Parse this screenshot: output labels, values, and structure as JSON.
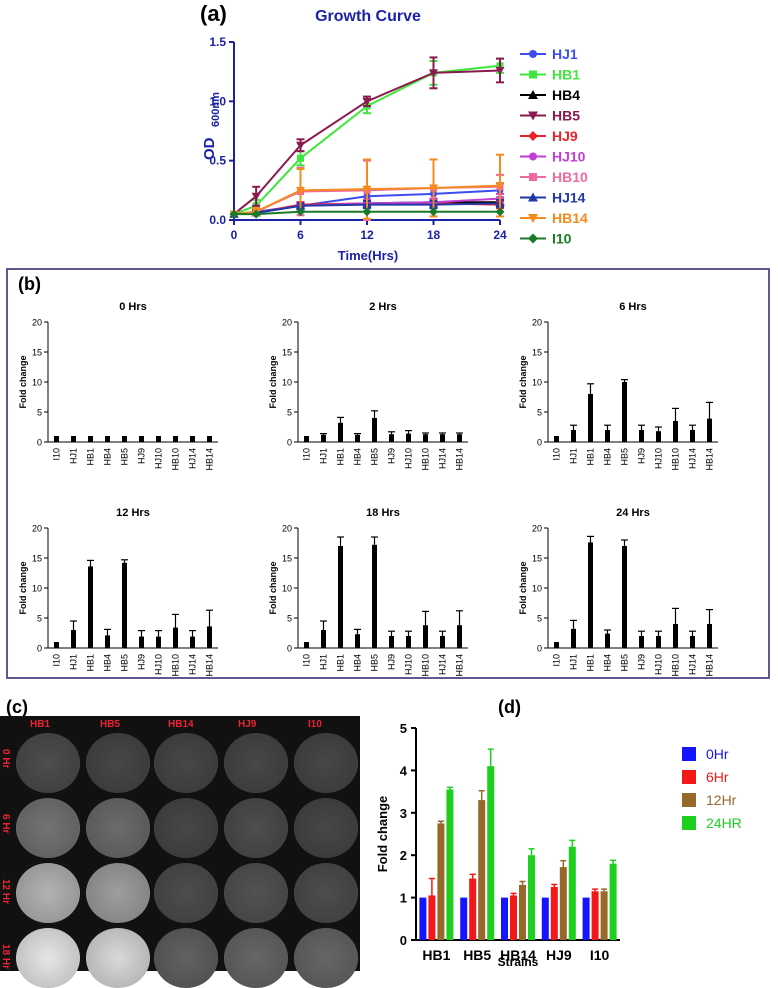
{
  "panel_labels": {
    "a": "(a)",
    "b": "(b)",
    "c": "(c)",
    "d": "(d)"
  },
  "photo": {
    "strains": [
      "HB1",
      "HB5",
      "HB14",
      "HJ9",
      "I10"
    ],
    "times": [
      "0 Hr",
      "6 Hr",
      "12 Hr",
      "18 Hr"
    ],
    "brightness": [
      [
        0.3,
        0.28,
        0.28,
        0.28,
        0.28
      ],
      [
        0.45,
        0.42,
        0.28,
        0.3,
        0.28
      ],
      [
        0.7,
        0.62,
        0.3,
        0.32,
        0.3
      ],
      [
        0.9,
        0.85,
        0.38,
        0.4,
        0.4
      ]
    ]
  },
  "chart_data": [
    {
      "id": "a",
      "type": "line",
      "title": "Growth Curve",
      "xlabel": "Time(Hrs)",
      "ylabel": "OD",
      "ylabel_sub": "600nm",
      "x": [
        0,
        2,
        6,
        12,
        18,
        24
      ],
      "xticks": [
        "0",
        "6",
        "12",
        "18",
        "24"
      ],
      "xtick_values": [
        0,
        6,
        12,
        18,
        24
      ],
      "yticks": [
        "0.0",
        "0.5",
        "1.0",
        "1.5"
      ],
      "ytick_values": [
        0,
        0.5,
        1.0,
        1.5
      ],
      "xlim": [
        0,
        24
      ],
      "ylim": [
        0,
        1.5
      ],
      "series": [
        {
          "name": "HJ1",
          "color": "#3d4df2",
          "marker": "circle",
          "values": [
            0.05,
            0.07,
            0.12,
            0.2,
            0.22,
            0.25
          ],
          "err": [
            0.01,
            0.02,
            0.03,
            0.05,
            0.05,
            0.06
          ]
        },
        {
          "name": "HB1",
          "color": "#3ee63e",
          "marker": "square",
          "values": [
            0.05,
            0.12,
            0.52,
            0.96,
            1.24,
            1.3
          ],
          "err": [
            0.01,
            0.05,
            0.06,
            0.06,
            0.1,
            0.06
          ]
        },
        {
          "name": "HB4",
          "color": "#000000",
          "marker": "triangle",
          "values": [
            0.05,
            0.06,
            0.12,
            0.14,
            0.15,
            0.15
          ],
          "err": [
            0.01,
            0.02,
            0.02,
            0.03,
            0.03,
            0.03
          ]
        },
        {
          "name": "HB5",
          "color": "#8b1a4e",
          "marker": "tri-down",
          "values": [
            0.05,
            0.2,
            0.63,
            1.0,
            1.24,
            1.26
          ],
          "err": [
            0.01,
            0.08,
            0.05,
            0.04,
            0.13,
            0.1
          ]
        },
        {
          "name": "HJ9",
          "color": "#e8232a",
          "marker": "diamond",
          "values": [
            0.05,
            0.06,
            0.13,
            0.14,
            0.14,
            0.13
          ],
          "err": [
            0.01,
            0.02,
            0.02,
            0.02,
            0.03,
            0.03
          ]
        },
        {
          "name": "HJ10",
          "color": "#c23fd6",
          "marker": "circle",
          "values": [
            0.05,
            0.06,
            0.12,
            0.14,
            0.15,
            0.18
          ],
          "err": [
            0.01,
            0.02,
            0.02,
            0.03,
            0.03,
            0.04
          ]
        },
        {
          "name": "HB10",
          "color": "#f06aa0",
          "marker": "square",
          "values": [
            0.05,
            0.07,
            0.24,
            0.25,
            0.27,
            0.28
          ],
          "err": [
            0.01,
            0.03,
            0.2,
            0.25,
            0.24,
            0.1
          ]
        },
        {
          "name": "HJ14",
          "color": "#1d3aa8",
          "marker": "triangle",
          "values": [
            0.05,
            0.06,
            0.12,
            0.13,
            0.13,
            0.14
          ],
          "err": [
            0.01,
            0.02,
            0.02,
            0.03,
            0.03,
            0.03
          ]
        },
        {
          "name": "HB14",
          "color": "#f58a1f",
          "marker": "tri-down",
          "values": [
            0.05,
            0.07,
            0.25,
            0.26,
            0.27,
            0.29
          ],
          "err": [
            0.01,
            0.03,
            0.18,
            0.25,
            0.24,
            0.26
          ]
        },
        {
          "name": "I10",
          "color": "#1a7a2a",
          "marker": "diamond",
          "values": [
            0.05,
            0.05,
            0.07,
            0.07,
            0.07,
            0.07
          ],
          "err": [
            0.01,
            0.01,
            0.01,
            0.01,
            0.01,
            0.01
          ]
        }
      ]
    },
    {
      "id": "b",
      "type": "bar",
      "ylabel": "Fold change",
      "yticks": [
        "0",
        "5",
        "10",
        "15",
        "20"
      ],
      "ytick_values": [
        0,
        5,
        10,
        15,
        20
      ],
      "ylim": [
        0,
        20
      ],
      "categories": [
        "I10",
        "HJ1",
        "HB1",
        "HB4",
        "HB5",
        "HJ9",
        "HJ10",
        "HB10",
        "HJ14",
        "HB14"
      ],
      "subplots": [
        {
          "title": "0 Hrs",
          "values": [
            1,
            1,
            1,
            1,
            1,
            1,
            1,
            1,
            1,
            1
          ],
          "err": [
            0,
            0,
            0,
            0,
            0,
            0,
            0,
            0,
            0,
            0
          ]
        },
        {
          "title": "2 Hrs",
          "values": [
            1,
            1.2,
            3.2,
            1.2,
            4,
            1.3,
            1.4,
            1.3,
            1.3,
            1.3
          ],
          "err": [
            0,
            0.2,
            0.9,
            0.2,
            1.2,
            0.4,
            0.5,
            0.2,
            0.2,
            0.2
          ]
        },
        {
          "title": "6 Hrs",
          "values": [
            1,
            2,
            8,
            2,
            10,
            2,
            1.8,
            3.5,
            2,
            3.9
          ],
          "err": [
            0,
            0.8,
            1.7,
            0.8,
            0.4,
            0.8,
            0.7,
            2.1,
            0.8,
            2.7
          ]
        },
        {
          "title": "12 Hrs",
          "values": [
            1,
            3,
            13.6,
            2.1,
            14.2,
            1.9,
            1.9,
            3.4,
            1.9,
            3.6
          ],
          "err": [
            0,
            1.5,
            1,
            1,
            0.5,
            1,
            1,
            2.2,
            1,
            2.7
          ]
        },
        {
          "title": "18 Hrs",
          "values": [
            1,
            3,
            17,
            2.3,
            17.2,
            2,
            2,
            3.8,
            2,
            3.8
          ],
          "err": [
            0,
            1.5,
            1.5,
            0.8,
            1.3,
            0.8,
            0.8,
            2.3,
            0.8,
            2.4
          ]
        },
        {
          "title": "24 Hrs",
          "values": [
            1,
            3.2,
            17.6,
            2.4,
            17,
            2,
            2,
            4,
            2,
            4
          ],
          "err": [
            0,
            1.4,
            1,
            0.6,
            1,
            0.8,
            0.8,
            2.6,
            0.8,
            2.4
          ]
        }
      ]
    },
    {
      "id": "d",
      "type": "bar",
      "xlabel": "Strains",
      "ylabel": "Fold change",
      "yticks": [
        "0",
        "1",
        "2",
        "3",
        "4",
        "5"
      ],
      "ytick_values": [
        0,
        1,
        2,
        3,
        4,
        5
      ],
      "ylim": [
        0,
        5
      ],
      "categories": [
        "HB1",
        "HB5",
        "HB14",
        "HJ9",
        "I10"
      ],
      "series": [
        {
          "name": "0Hr",
          "color": "#1414ff",
          "values": [
            1,
            1,
            1,
            1,
            1
          ],
          "err": [
            0,
            0,
            0,
            0,
            0
          ]
        },
        {
          "name": "6Hr",
          "color": "#f21818",
          "values": [
            1.05,
            1.45,
            1.05,
            1.25,
            1.15
          ],
          "err": [
            0.4,
            0.1,
            0.05,
            0.06,
            0.05
          ]
        },
        {
          "name": "12Hr",
          "color": "#96692a",
          "values": [
            2.75,
            3.3,
            1.3,
            1.72,
            1.15
          ],
          "err": [
            0.05,
            0.22,
            0.08,
            0.15,
            0.05
          ]
        },
        {
          "name": "24HR",
          "color": "#1ed01e",
          "values": [
            3.55,
            4.1,
            2,
            2.2,
            1.8
          ],
          "err": [
            0.05,
            0.4,
            0.15,
            0.15,
            0.08
          ]
        }
      ]
    }
  ]
}
